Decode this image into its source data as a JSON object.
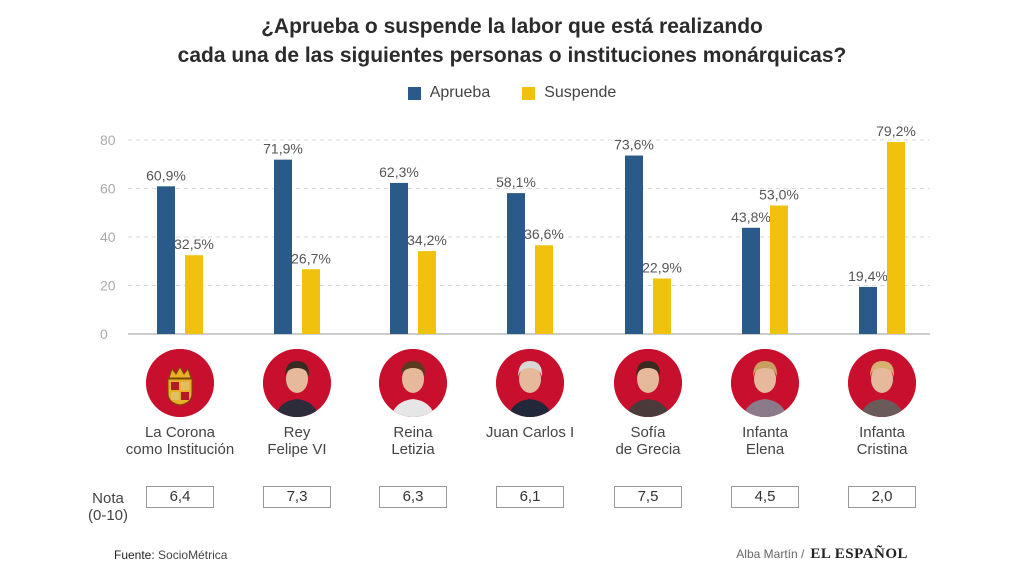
{
  "title": {
    "line1": "¿Aprueba o suspende la labor que está realizando",
    "line2": "cada una de las siguientes personas o instituciones monárquicas?"
  },
  "colors": {
    "aprueba": "#2a5a8a",
    "suspende": "#f0c20e",
    "avatar_bg": "#c8102e",
    "grid": "#d9d9d9",
    "axis_text": "#aaaaaa"
  },
  "legend": [
    {
      "label": "Aprueba",
      "color": "#2a5a8a"
    },
    {
      "label": "Suspende",
      "color": "#f0c20e"
    }
  ],
  "chart_data": {
    "type": "bar",
    "categories": [
      "La Corona como Institución",
      "Rey Felipe VI",
      "Reina Letizia",
      "Juan Carlos I",
      "Sofía de Grecia",
      "Infanta Elena",
      "Infanta Cristina"
    ],
    "series": [
      {
        "name": "Aprueba",
        "values": [
          60.9,
          71.9,
          62.3,
          58.1,
          73.6,
          43.8,
          19.4
        ],
        "labels": [
          "60,9%",
          "71,9%",
          "62,3%",
          "58,1%",
          "73,6%",
          "43,8%",
          "19,4%"
        ]
      },
      {
        "name": "Suspende",
        "values": [
          32.5,
          26.7,
          34.2,
          36.6,
          22.9,
          53.0,
          79.2
        ],
        "labels": [
          "32,5%",
          "26,7%",
          "34,2%",
          "36,6%",
          "22,9%",
          "53,0%",
          "79,2%"
        ]
      }
    ],
    "ylim": [
      0,
      80
    ],
    "yticks": [
      0,
      20,
      40,
      60,
      80
    ],
    "grid": true,
    "legend_position": "top"
  },
  "people": [
    {
      "name_lines": [
        "La Corona",
        "como Institución"
      ],
      "icon": "crown-coat-of-arms-icon",
      "nota": "6,4"
    },
    {
      "name_lines": [
        "Rey",
        "Felipe VI"
      ],
      "icon": "portrait-icon",
      "nota": "7,3"
    },
    {
      "name_lines": [
        "Reina",
        "Letizia"
      ],
      "icon": "portrait-icon",
      "nota": "6,3"
    },
    {
      "name_lines": [
        "Juan Carlos I"
      ],
      "icon": "portrait-icon",
      "nota": "6,1"
    },
    {
      "name_lines": [
        "Sofía",
        "de Grecia"
      ],
      "icon": "portrait-icon",
      "nota": "7,5"
    },
    {
      "name_lines": [
        "Infanta",
        "Elena"
      ],
      "icon": "portrait-icon",
      "nota": "4,5"
    },
    {
      "name_lines": [
        "Infanta",
        "Cristina"
      ],
      "icon": "portrait-icon",
      "nota": "2,0"
    }
  ],
  "nota_label": {
    "line1": "Nota",
    "line2": "(0-10)"
  },
  "footer": {
    "source_prefix": "Fuente:",
    "source_name": "SocioMétrica",
    "author": "Alba Martín /",
    "brand": "EL ESPAÑOL"
  }
}
